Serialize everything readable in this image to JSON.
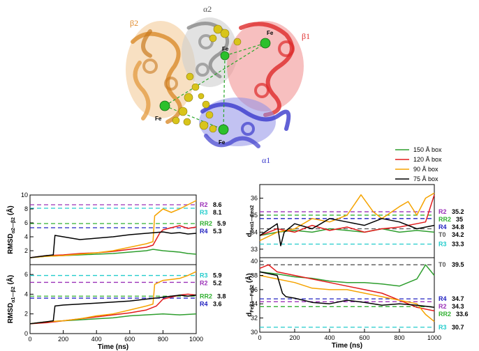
{
  "structure": {
    "subunit_labels": [
      {
        "text": "α2",
        "color": "#555555"
      },
      {
        "text": "β2",
        "color": "#e08a2a"
      },
      {
        "text": "β1",
        "color": "#e03030"
      },
      {
        "text": "α1",
        "color": "#3a3acc"
      }
    ],
    "fe_label": "Fe"
  },
  "legend": {
    "entries": [
      {
        "label": "150 Å  box",
        "color": "#2e9e2e"
      },
      {
        "label": "120 Å  box",
        "color": "#e21b1b"
      },
      {
        "label": "90 Å  box",
        "color": "#f5a300"
      },
      {
        "label": "75 Å  box",
        "color": "#000000"
      }
    ]
  },
  "chart_data": [
    {
      "type": "line",
      "panel": "top-left",
      "ylabel": "RMSD",
      "ylabel_sub": "α2—β2",
      "ylabel_unit": "(Å)",
      "xlim": [
        0,
        1000
      ],
      "ylim": [
        0,
        10
      ],
      "yticks": [
        2,
        4,
        6,
        8,
        10
      ],
      "xticks": [],
      "reference_lines": [
        {
          "name": "R2",
          "value": 8.6,
          "color": "#9b30b8"
        },
        {
          "name": "R3",
          "value": 8.1,
          "color": "#22cccc"
        },
        {
          "name": "RR2",
          "value": 5.9,
          "color": "#30b030"
        },
        {
          "name": "R4",
          "value": 5.3,
          "color": "#2020c0"
        }
      ],
      "series": [
        {
          "name": "150 Å box",
          "color": "#2e9e2e",
          "x": [
            0,
            100,
            200,
            300,
            400,
            500,
            600,
            700,
            740,
            800,
            850,
            900,
            950,
            1000
          ],
          "y": [
            1.0,
            1.2,
            1.3,
            1.4,
            1.5,
            1.6,
            1.8,
            2.0,
            2.2,
            2.0,
            1.9,
            1.8,
            1.6,
            1.5
          ]
        },
        {
          "name": "120 Å box",
          "color": "#e21b1b",
          "x": [
            0,
            100,
            200,
            300,
            400,
            500,
            600,
            700,
            740,
            780,
            800,
            850,
            900,
            950,
            1000
          ],
          "y": [
            1.0,
            1.3,
            1.4,
            1.6,
            1.7,
            1.9,
            2.2,
            2.5,
            2.8,
            4.5,
            5.0,
            5.3,
            5.6,
            5.2,
            5.4
          ]
        },
        {
          "name": "90 Å box",
          "color": "#f5a300",
          "x": [
            0,
            100,
            200,
            300,
            400,
            500,
            600,
            700,
            740,
            750,
            800,
            850,
            900,
            950,
            1000
          ],
          "y": [
            1.0,
            1.2,
            1.3,
            1.5,
            1.7,
            2.0,
            2.5,
            3.0,
            3.3,
            7.0,
            8.0,
            7.5,
            8.0,
            8.6,
            9.2
          ]
        },
        {
          "name": "75 Å box",
          "color": "#000000",
          "x": [
            0,
            100,
            140,
            150,
            200,
            300,
            400,
            500,
            600,
            700,
            800,
            850,
            900,
            950,
            1000
          ],
          "y": [
            1.0,
            1.3,
            1.4,
            4.2,
            4.0,
            3.6,
            3.8,
            4.0,
            4.3,
            4.5,
            4.7,
            4.5,
            4.6,
            4.4,
            4.5
          ]
        }
      ]
    },
    {
      "type": "line",
      "panel": "bottom-left",
      "xlabel": "Time (ns)",
      "ylabel": "RMSD",
      "ylabel_sub": "α1—β2",
      "ylabel_unit": "(Å)",
      "xlim": [
        0,
        1000
      ],
      "ylim": [
        0,
        7
      ],
      "yticks": [
        0,
        2,
        4,
        6
      ],
      "xticks": [
        0,
        200,
        400,
        600,
        800,
        1000
      ],
      "reference_lines": [
        {
          "name": "R3",
          "value": 5.9,
          "color": "#22cccc"
        },
        {
          "name": "R2",
          "value": 5.2,
          "color": "#9b30b8"
        },
        {
          "name": "RR2",
          "value": 3.8,
          "color": "#30b030"
        },
        {
          "name": "R4",
          "value": 3.6,
          "color": "#2020c0"
        }
      ],
      "series": [
        {
          "name": "150 Å box",
          "color": "#2e9e2e",
          "x": [
            0,
            100,
            200,
            300,
            400,
            500,
            600,
            700,
            800,
            900,
            1000
          ],
          "y": [
            1.0,
            1.2,
            1.3,
            1.4,
            1.5,
            1.6,
            1.8,
            1.9,
            2.0,
            1.9,
            2.0
          ]
        },
        {
          "name": "120 Å box",
          "color": "#e21b1b",
          "x": [
            0,
            100,
            200,
            300,
            400,
            500,
            600,
            700,
            760,
            800,
            850,
            900,
            950,
            1000
          ],
          "y": [
            1.0,
            1.1,
            1.3,
            1.5,
            1.7,
            1.9,
            2.1,
            2.4,
            2.8,
            3.5,
            3.7,
            3.9,
            4.0,
            3.9
          ]
        },
        {
          "name": "90 Å box",
          "color": "#f5a300",
          "x": [
            0,
            100,
            200,
            300,
            400,
            500,
            600,
            700,
            740,
            750,
            800,
            850,
            900,
            950,
            1000
          ],
          "y": [
            1.0,
            1.2,
            1.3,
            1.5,
            1.8,
            2.0,
            2.4,
            2.8,
            3.0,
            5.0,
            5.4,
            5.5,
            5.6,
            5.9,
            6.3
          ]
        },
        {
          "name": "75 Å box",
          "color": "#000000",
          "x": [
            0,
            100,
            140,
            150,
            200,
            300,
            400,
            500,
            600,
            700,
            800,
            850,
            900,
            950,
            1000
          ],
          "y": [
            1.0,
            1.2,
            1.3,
            2.8,
            2.9,
            3.0,
            3.1,
            3.2,
            3.3,
            3.5,
            3.7,
            3.8,
            3.9,
            3.8,
            3.9
          ]
        }
      ]
    },
    {
      "type": "line",
      "panel": "top-right",
      "ylabel": "d",
      "ylabel_sub": "Feα1—Feα2",
      "xlim": [
        0,
        1000
      ],
      "ylim": [
        32.5,
        36.8
      ],
      "yticks": [
        33,
        34,
        35,
        36
      ],
      "xticks": [],
      "reference_lines": [
        {
          "name": "R2",
          "value": 35.2,
          "color": "#9b30b8"
        },
        {
          "name": "RR2",
          "value": 35.0,
          "color": "#30b030"
        },
        {
          "name": "R4",
          "value": 34.8,
          "color": "#2020c0"
        },
        {
          "name": "T0",
          "value": 34.2,
          "color": "#555555"
        },
        {
          "name": "R3",
          "value": 33.3,
          "color": "#22cccc"
        }
      ],
      "series": [
        {
          "name": "150 Å box",
          "color": "#2e9e2e",
          "x": [
            0,
            100,
            200,
            300,
            400,
            500,
            600,
            700,
            800,
            900,
            1000
          ],
          "y": [
            33.8,
            34.0,
            34.1,
            34.0,
            34.2,
            34.1,
            34.0,
            34.2,
            34.0,
            34.1,
            34.0
          ]
        },
        {
          "name": "120 Å box",
          "color": "#e21b1b",
          "x": [
            0,
            100,
            200,
            300,
            400,
            500,
            600,
            700,
            800,
            900,
            950,
            1000
          ],
          "y": [
            33.8,
            34.2,
            34.0,
            34.4,
            34.1,
            34.3,
            34.0,
            34.2,
            34.3,
            34.5,
            34.6,
            36.2
          ]
        },
        {
          "name": "90 Å box",
          "color": "#f5a300",
          "x": [
            0,
            100,
            200,
            300,
            400,
            500,
            580,
            650,
            700,
            800,
            850,
            900,
            950,
            1000
          ],
          "y": [
            33.5,
            34.0,
            34.2,
            34.8,
            34.6,
            35.0,
            36.2,
            35.2,
            34.8,
            35.5,
            35.8,
            35.0,
            36.0,
            36.3
          ]
        },
        {
          "name": "75 Å box",
          "color": "#000000",
          "x": [
            0,
            100,
            120,
            140,
            200,
            300,
            400,
            500,
            600,
            700,
            800,
            900,
            1000
          ],
          "y": [
            33.8,
            34.5,
            33.2,
            34.0,
            34.5,
            34.2,
            34.8,
            34.6,
            34.4,
            34.8,
            34.6,
            34.2,
            34.4
          ]
        }
      ]
    },
    {
      "type": "line",
      "panel": "bottom-right",
      "xlabel": "Time (ns)",
      "ylabel": "d",
      "ylabel_sub": "Feβ1—Feβ2",
      "ylabel_unit": "(Å)",
      "xlim": [
        0,
        1000
      ],
      "ylim": [
        30,
        40.5
      ],
      "yticks": [
        30,
        32,
        34,
        36,
        38,
        40
      ],
      "xticks": [
        0,
        200,
        400,
        600,
        800,
        1000
      ],
      "reference_lines": [
        {
          "name": "T0",
          "value": 39.5,
          "color": "#555555"
        },
        {
          "name": "R4",
          "value": 34.7,
          "color": "#2020c0"
        },
        {
          "name": "R2",
          "value": 34.3,
          "color": "#9b30b8"
        },
        {
          "name": "RR2",
          "value": 33.6,
          "color": "#30b030"
        },
        {
          "name": "R3",
          "value": 30.7,
          "color": "#22cccc"
        }
      ],
      "series": [
        {
          "name": "150 Å box",
          "color": "#2e9e2e",
          "x": [
            0,
            100,
            200,
            300,
            400,
            500,
            600,
            700,
            800,
            900,
            950,
            1000
          ],
          "y": [
            38.5,
            38.2,
            37.8,
            37.6,
            37.2,
            37.0,
            37.0,
            36.8,
            36.5,
            37.5,
            39.5,
            38.0
          ]
        },
        {
          "name": "120 Å box",
          "color": "#e21b1b",
          "x": [
            0,
            50,
            100,
            200,
            300,
            400,
            500,
            600,
            700,
            800,
            900,
            1000
          ],
          "y": [
            39.0,
            39.5,
            38.5,
            38.0,
            37.5,
            37.0,
            36.5,
            36.0,
            35.5,
            34.5,
            33.5,
            33.0
          ]
        },
        {
          "name": "90 Å box",
          "color": "#f5a300",
          "x": [
            0,
            100,
            200,
            300,
            400,
            500,
            600,
            700,
            800,
            900,
            950,
            1000
          ],
          "y": [
            38.0,
            37.5,
            37.0,
            36.2,
            36.0,
            36.0,
            35.5,
            35.0,
            34.5,
            34.0,
            32.5,
            31.5
          ]
        },
        {
          "name": "75 Å box",
          "color": "#000000",
          "x": [
            0,
            100,
            130,
            150,
            200,
            300,
            400,
            500,
            600,
            700,
            800,
            900,
            1000
          ],
          "y": [
            38.5,
            38.0,
            35.5,
            35.0,
            34.8,
            34.2,
            34.0,
            34.5,
            34.2,
            33.8,
            34.0,
            33.8,
            33.5
          ]
        }
      ]
    }
  ]
}
